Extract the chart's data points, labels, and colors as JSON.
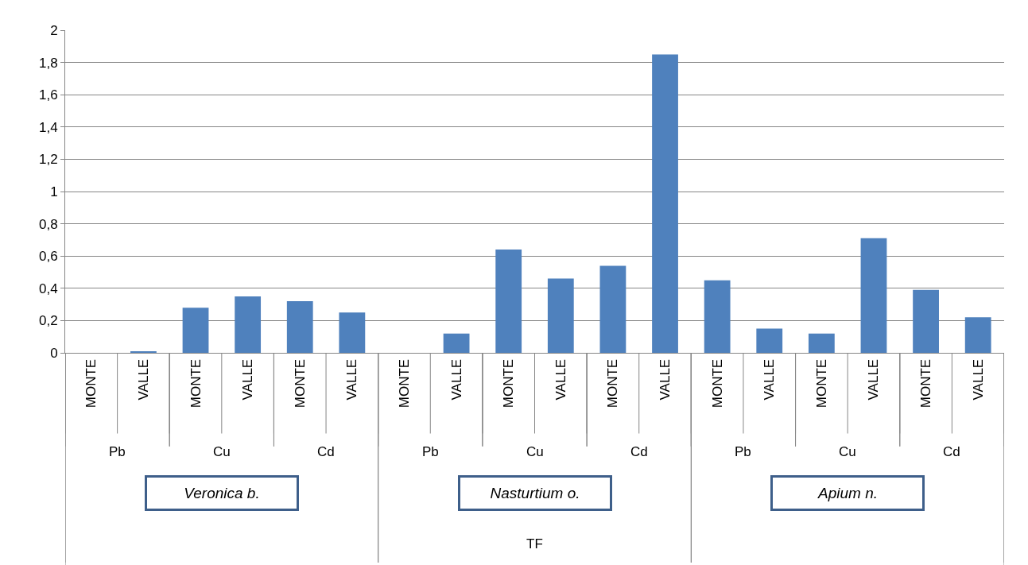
{
  "chart_data": {
    "type": "bar",
    "categories": [
      "MONTE",
      "VALLE",
      "MONTE",
      "VALLE",
      "MONTE",
      "VALLE",
      "MONTE",
      "VALLE",
      "MONTE",
      "VALLE",
      "MONTE",
      "VALLE",
      "MONTE",
      "VALLE",
      "MONTE",
      "VALLE",
      "MONTE",
      "VALLE"
    ],
    "values": [
      0,
      0.01,
      0.28,
      0.35,
      0.32,
      0.25,
      0,
      0.12,
      0.64,
      0.46,
      0.54,
      1.85,
      0.45,
      0.15,
      0.12,
      0.71,
      0.39,
      0.22
    ],
    "color": "#4f81bd",
    "ylim": [
      0,
      2
    ],
    "yticks": [
      0,
      {
        "value": 0.2,
        "label": "0,2"
      },
      {
        "value": 0.4,
        "label": "0,4"
      },
      {
        "value": 0.6,
        "label": "0,6"
      },
      {
        "value": 0.8,
        "label": "0,8"
      },
      1,
      {
        "value": 1.2,
        "label": "1,2"
      },
      {
        "value": 1.4,
        "label": "1,4"
      },
      {
        "value": 1.6,
        "label": "1,6"
      },
      {
        "value": 1.8,
        "label": "1,8"
      },
      2
    ],
    "grid": "y",
    "legend": false,
    "annotations": [
      "Pb",
      "Cu",
      "Cd",
      "Pb",
      "Cu",
      "Cd",
      "Pb",
      "Cu",
      "Cd",
      "Veronica b.",
      "Nasturtium o.",
      "Apium n.",
      "TF"
    ]
  }
}
